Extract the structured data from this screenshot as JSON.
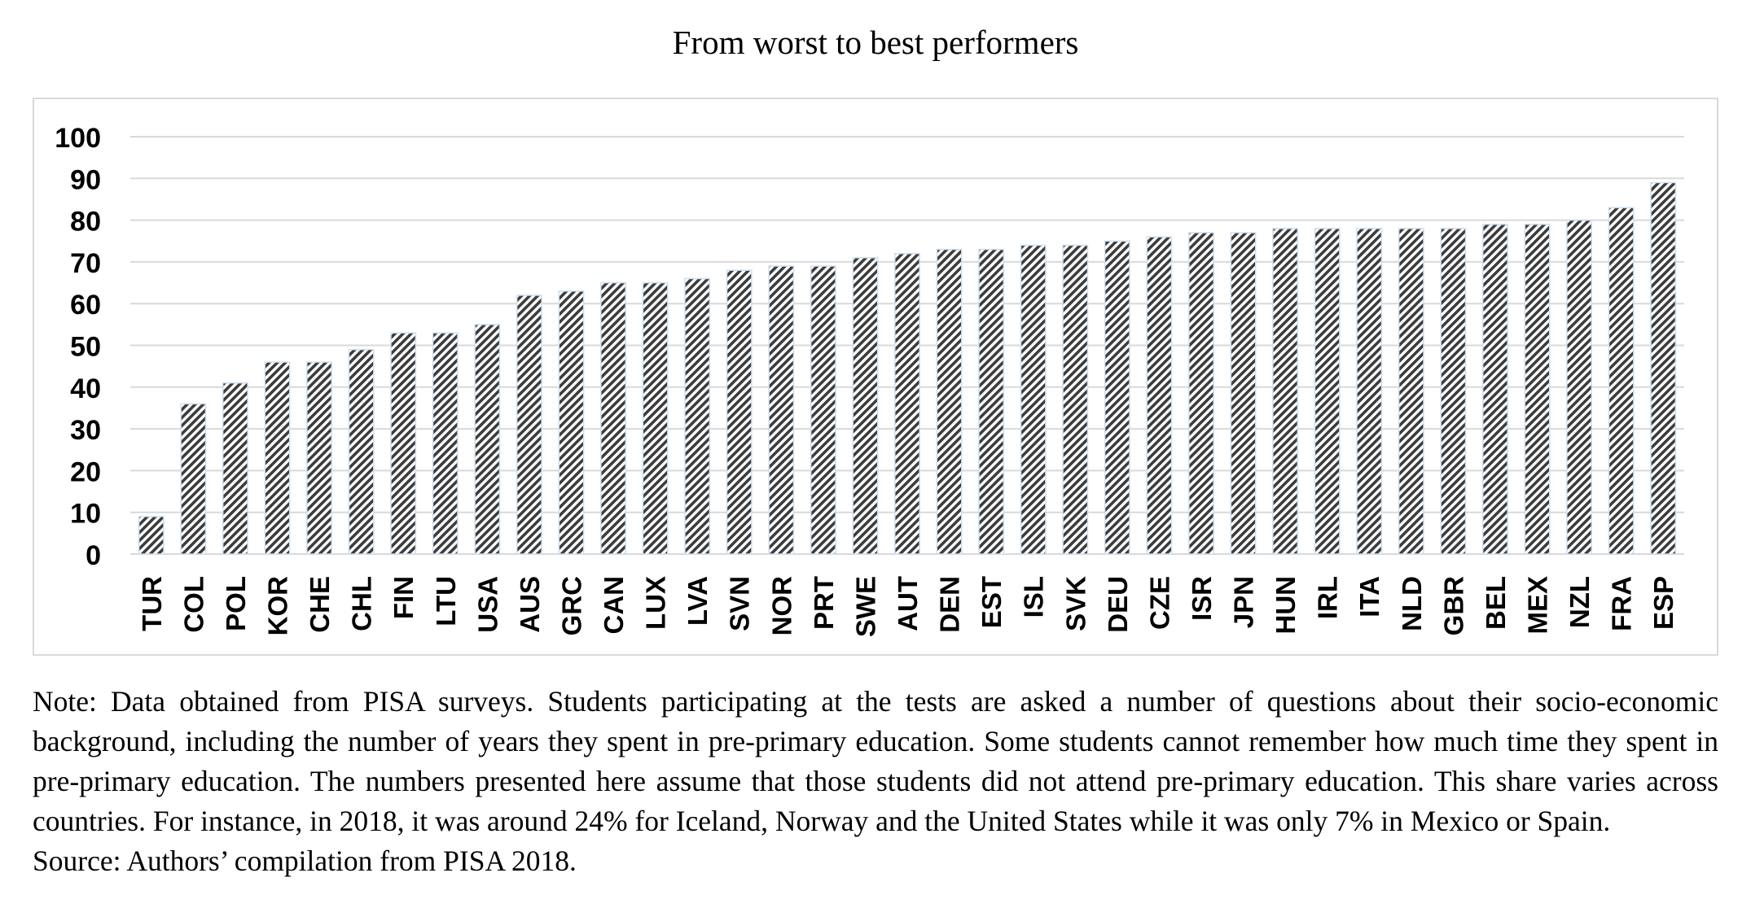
{
  "title": "From worst to best performers",
  "note": "Note: Data obtained from PISA surveys. Students participating at the tests are asked a number of questions about their socio-economic background, including the number of years they spent in pre-primary education. Some students cannot remember how much time they spent in pre-primary education. The numbers presented here assume that those students did not attend pre-primary education. This share varies across countries. For instance, in 2018, it was around 24% for Iceland, Norway and the United States while it was only 7% in Mexico or Spain.",
  "source": "Source: Authors’ compilation from PISA 2018.",
  "chart_data": {
    "type": "bar",
    "title": "From worst to best performers",
    "xlabel": "",
    "ylabel": "",
    "ylim": [
      0,
      100
    ],
    "yticks": [
      0,
      10,
      20,
      30,
      40,
      50,
      60,
      70,
      80,
      90,
      100
    ],
    "grid": true,
    "legend": "none",
    "bar_pattern": "diagonal hatch, dark grey on white",
    "colors": {
      "hatch": "#3c3c3c",
      "grid": "#d9d9d9",
      "bar_edge": "#cfe0f0"
    },
    "categories": [
      "TUR",
      "COL",
      "POL",
      "KOR",
      "CHE",
      "CHL",
      "FIN",
      "LTU",
      "USA",
      "AUS",
      "GRC",
      "CAN",
      "LUX",
      "LVA",
      "SVN",
      "NOR",
      "PRT",
      "SWE",
      "AUT",
      "DEN",
      "EST",
      "ISL",
      "SVK",
      "DEU",
      "CZE",
      "ISR",
      "JPN",
      "HUN",
      "IRL",
      "ITA",
      "NLD",
      "GBR",
      "BEL",
      "MEX",
      "NZL",
      "FRA",
      "ESP"
    ],
    "values": [
      9,
      36,
      41,
      46,
      46,
      49,
      53,
      53,
      55,
      62,
      63,
      65,
      65,
      66,
      68,
      69,
      69,
      71,
      72,
      73,
      73,
      74,
      74,
      75,
      76,
      77,
      77,
      78,
      78,
      78,
      78,
      78,
      79,
      79,
      80,
      83,
      89
    ]
  }
}
